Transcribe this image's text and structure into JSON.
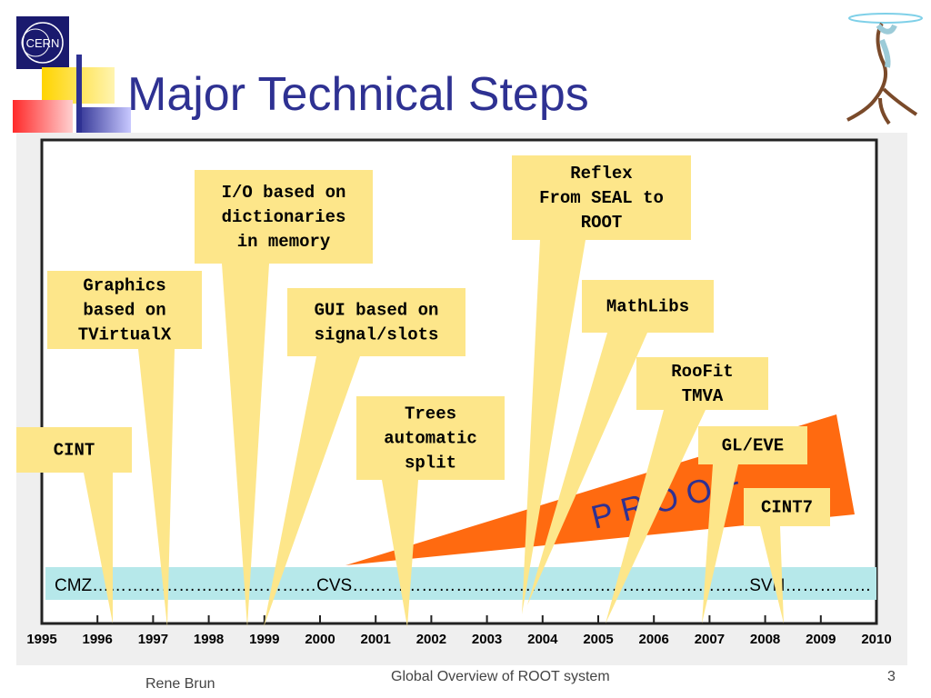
{
  "slide": {
    "title": "Major Technical Steps",
    "logo_text": "CERN",
    "footer_author": "Rene Brun",
    "footer_title": "Global Overview of ROOT system",
    "page_number": "3"
  },
  "timeline": {
    "years": [
      "1995",
      "1996",
      "1997",
      "1998",
      "1999",
      "2000",
      "2001",
      "2002",
      "2003",
      "2004",
      "2005",
      "2006",
      "2007",
      "2008",
      "2009",
      "2010"
    ],
    "repository_band": [
      {
        "label": "CMZ",
        "dots": "…………………………………"
      },
      {
        "label": "CVS",
        "dots": "……………………………………………………………"
      },
      {
        "label": "SVN",
        "dots": "……………"
      }
    ],
    "proof_label": "P R O O F"
  },
  "callouts": [
    {
      "id": "cint",
      "lines": [
        "CINT"
      ]
    },
    {
      "id": "graphics",
      "lines": [
        "Graphics",
        "based on",
        "TVirtualX"
      ]
    },
    {
      "id": "io",
      "lines": [
        "I/O based on",
        "dictionaries",
        "in memory"
      ]
    },
    {
      "id": "gui",
      "lines": [
        "GUI based on",
        "signal/slots"
      ]
    },
    {
      "id": "trees",
      "lines": [
        "Trees",
        "automatic",
        "split"
      ]
    },
    {
      "id": "reflex",
      "lines": [
        "Reflex",
        "From SEAL to",
        "ROOT"
      ]
    },
    {
      "id": "mathlibs",
      "lines": [
        "MathLibs"
      ]
    },
    {
      "id": "roofit",
      "lines": [
        "RooFit",
        "TMVA"
      ]
    },
    {
      "id": "gleve",
      "lines": [
        "GL/EVE"
      ]
    },
    {
      "id": "cint7",
      "lines": [
        "CINT7"
      ]
    }
  ]
}
